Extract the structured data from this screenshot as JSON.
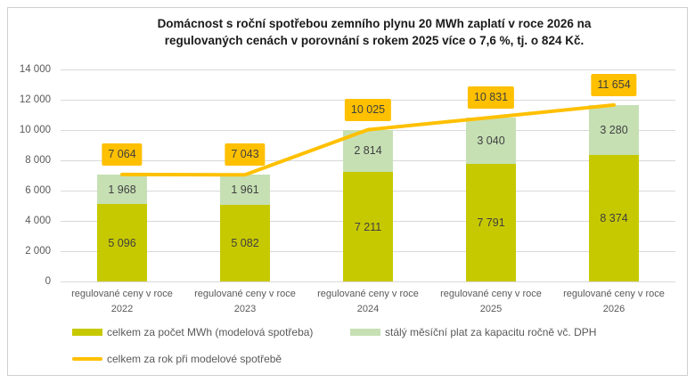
{
  "chart_data": {
    "type": "bar",
    "subtype": "stacked-bars-with-total-line",
    "title_lines": [
      "Domácnost s roční spotřebou zemního plynu 20 MWh zaplatí v roce 2026 na",
      "regulovaných cenách v porovnání s rokem 2025 více o 7,6 %, tj. o 824 Kč."
    ],
    "categories": [
      {
        "line1": "regulované ceny v roce",
        "line2": "2022"
      },
      {
        "line1": "regulované ceny v roce",
        "line2": "2023"
      },
      {
        "line1": "regulované ceny v roce",
        "line2": "2024"
      },
      {
        "line1": "regulované ceny v roce",
        "line2": "2025"
      },
      {
        "line1": "regulované ceny v roce",
        "line2": "2026"
      }
    ],
    "series": [
      {
        "name": "celkem za počet MWh (modelová spotřeba)",
        "color": "#c7c900",
        "values": [
          5096,
          5082,
          7211,
          7791,
          8374
        ],
        "labels": [
          "5 096",
          "5 082",
          "7 211",
          "7 791",
          "8 374"
        ]
      },
      {
        "name": "stálý měsíční plat za kapacitu ročně vč. DPH",
        "color": "#c6e0b4",
        "values": [
          1968,
          1961,
          2814,
          3040,
          3280
        ],
        "labels": [
          "1 968",
          "1 961",
          "2 814",
          "3 040",
          "3 280"
        ]
      }
    ],
    "line_series": {
      "name": "celkem za rok při modelové spotřebě",
      "color": "#ffc000",
      "values": [
        7064,
        7043,
        10025,
        10831,
        11654
      ],
      "labels": [
        "7 064",
        "7 043",
        "10 025",
        "10 831",
        "11 654"
      ],
      "label_background": "#ffc000"
    },
    "y_axis": {
      "min": 0,
      "max": 14000,
      "tick_step": 2000,
      "tick_labels": [
        "0",
        "2 000",
        "4 000",
        "6 000",
        "8 000",
        "10 000",
        "12 000",
        "14 000"
      ],
      "grid": true,
      "grid_color": "#d9d9d9"
    },
    "legend_position": "bottom"
  }
}
